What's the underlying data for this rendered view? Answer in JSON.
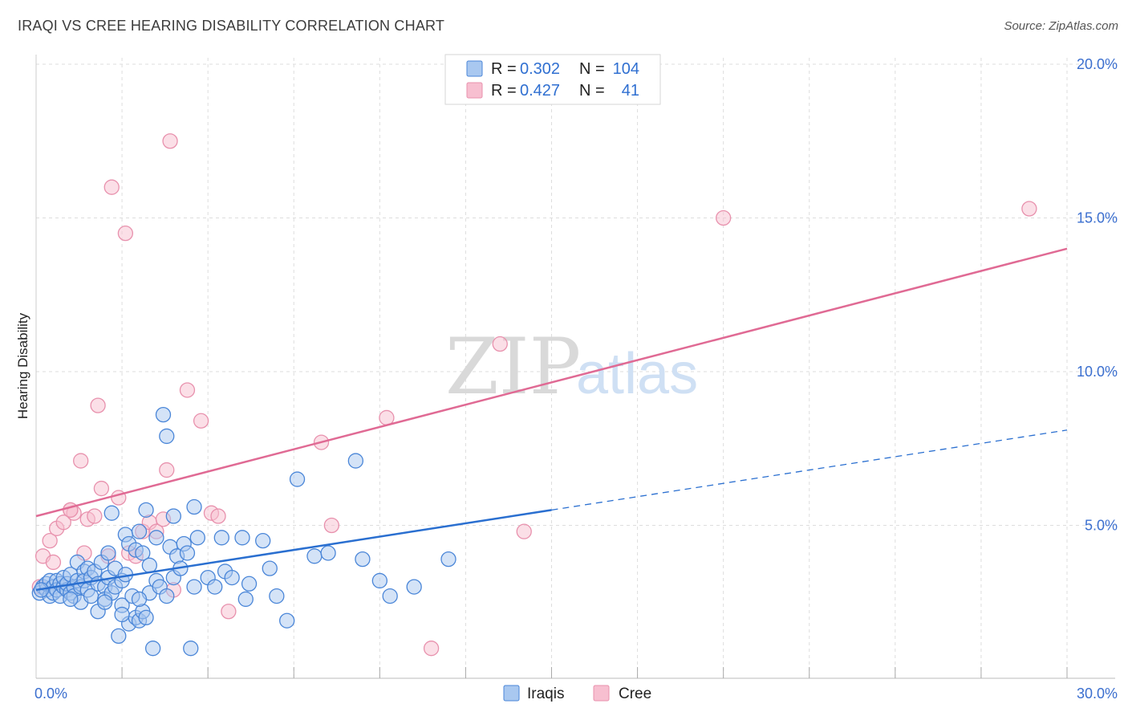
{
  "title": "IRAQI VS CREE HEARING DISABILITY CORRELATION CHART",
  "source": "Source: ZipAtlas.com",
  "watermark": {
    "zip": "ZIP",
    "atlas": "atlas"
  },
  "colors": {
    "iraqis_fill": "#a9c8f0",
    "iraqis_stroke": "#4a86d8",
    "iraqis_line": "#2a6fd0",
    "cree_fill": "#f7bfd0",
    "cree_stroke": "#e891ad",
    "cree_line": "#e06a94",
    "grid": "#dddddd",
    "tick": "#3b6fcf"
  },
  "legend": {
    "rows": [
      {
        "r_label": "R =",
        "r_value": "0.302",
        "n_label": "N =",
        "n_value": "104",
        "series": "Iraqis"
      },
      {
        "r_label": "R =",
        "r_value": "0.427",
        "n_label": "N =",
        "n_value": "41",
        "series": "Cree"
      }
    ]
  },
  "bottom_legend": [
    "Iraqis",
    "Cree"
  ],
  "chart_data": {
    "type": "scatter",
    "title": "IRAQI VS CREE HEARING DISABILITY CORRELATION CHART",
    "xlabel": "",
    "ylabel": "Hearing Disability",
    "xlim": [
      0,
      30
    ],
    "ylim": [
      0,
      20
    ],
    "x_tick_labels": [
      {
        "value": 0,
        "label": "0.0%"
      },
      {
        "value": 30,
        "label": "30.0%"
      }
    ],
    "y_tick_labels": [
      {
        "value": 5,
        "label": "5.0%"
      },
      {
        "value": 10,
        "label": "10.0%"
      },
      {
        "value": 15,
        "label": "15.0%"
      },
      {
        "value": 20,
        "label": "20.0%"
      }
    ],
    "grid": true,
    "legend_position": "top-center",
    "series": [
      {
        "name": "Iraqis",
        "R": 0.302,
        "N": 104,
        "trend": {
          "x0": 0,
          "y0": 2.9,
          "x1": 15,
          "y1": 5.5,
          "dashed_to_x": 30,
          "dashed_to_y": 8.1
        },
        "points": [
          [
            0.1,
            2.8
          ],
          [
            0.2,
            3.0
          ],
          [
            0.3,
            2.9
          ],
          [
            0.3,
            3.1
          ],
          [
            0.4,
            2.7
          ],
          [
            0.4,
            3.2
          ],
          [
            0.5,
            3.0
          ],
          [
            0.5,
            2.8
          ],
          [
            0.6,
            3.2
          ],
          [
            0.6,
            2.9
          ],
          [
            0.7,
            3.1
          ],
          [
            0.7,
            2.7
          ],
          [
            0.8,
            3.0
          ],
          [
            0.8,
            3.3
          ],
          [
            0.9,
            2.9
          ],
          [
            0.9,
            3.1
          ],
          [
            1.0,
            2.8
          ],
          [
            1.0,
            3.4
          ],
          [
            1.1,
            3.0
          ],
          [
            1.1,
            2.7
          ],
          [
            1.2,
            3.2
          ],
          [
            1.2,
            3.8
          ],
          [
            1.3,
            2.5
          ],
          [
            1.3,
            3.0
          ],
          [
            1.4,
            3.5
          ],
          [
            1.4,
            3.2
          ],
          [
            1.5,
            3.6
          ],
          [
            1.5,
            2.9
          ],
          [
            1.6,
            3.3
          ],
          [
            1.6,
            2.7
          ],
          [
            1.7,
            3.5
          ],
          [
            1.8,
            3.1
          ],
          [
            1.8,
            2.2
          ],
          [
            1.9,
            3.8
          ],
          [
            2.0,
            3.0
          ],
          [
            2.0,
            2.6
          ],
          [
            2.1,
            3.3
          ],
          [
            2.1,
            4.1
          ],
          [
            2.2,
            2.8
          ],
          [
            2.2,
            5.4
          ],
          [
            2.3,
            3.6
          ],
          [
            2.3,
            3.0
          ],
          [
            2.4,
            1.4
          ],
          [
            2.5,
            3.2
          ],
          [
            2.5,
            2.4
          ],
          [
            2.6,
            4.7
          ],
          [
            2.6,
            3.4
          ],
          [
            2.7,
            1.8
          ],
          [
            2.7,
            4.4
          ],
          [
            2.8,
            2.7
          ],
          [
            2.9,
            4.2
          ],
          [
            2.9,
            2.0
          ],
          [
            3.0,
            4.8
          ],
          [
            3.0,
            1.9
          ],
          [
            3.1,
            2.2
          ],
          [
            3.1,
            4.1
          ],
          [
            3.2,
            5.5
          ],
          [
            3.2,
            2.0
          ],
          [
            3.3,
            3.7
          ],
          [
            3.3,
            2.8
          ],
          [
            3.4,
            1.0
          ],
          [
            3.5,
            4.6
          ],
          [
            3.5,
            3.2
          ],
          [
            3.6,
            3.0
          ],
          [
            3.7,
            8.6
          ],
          [
            3.8,
            2.7
          ],
          [
            3.9,
            4.3
          ],
          [
            4.0,
            5.3
          ],
          [
            4.0,
            3.3
          ],
          [
            4.1,
            4.0
          ],
          [
            4.2,
            3.6
          ],
          [
            4.3,
            4.4
          ],
          [
            4.4,
            4.1
          ],
          [
            4.5,
            1.0
          ],
          [
            4.6,
            5.6
          ],
          [
            4.6,
            3.0
          ],
          [
            4.7,
            4.6
          ],
          [
            5.0,
            3.3
          ],
          [
            5.2,
            3.0
          ],
          [
            5.4,
            4.6
          ],
          [
            5.5,
            3.5
          ],
          [
            5.7,
            3.3
          ],
          [
            6.0,
            4.6
          ],
          [
            6.1,
            2.6
          ],
          [
            6.2,
            3.1
          ],
          [
            6.6,
            4.5
          ],
          [
            6.8,
            3.6
          ],
          [
            7.0,
            2.7
          ],
          [
            7.3,
            1.9
          ],
          [
            7.6,
            6.5
          ],
          [
            8.1,
            4.0
          ],
          [
            8.5,
            4.1
          ],
          [
            9.3,
            7.1
          ],
          [
            9.5,
            3.9
          ],
          [
            10.0,
            3.2
          ],
          [
            10.3,
            2.7
          ],
          [
            11.0,
            3.0
          ],
          [
            12.0,
            3.9
          ],
          [
            2.0,
            2.5
          ],
          [
            1.0,
            2.6
          ],
          [
            3.8,
            7.9
          ],
          [
            3.0,
            2.6
          ],
          [
            2.5,
            2.1
          ],
          [
            0.15,
            2.9
          ]
        ]
      },
      {
        "name": "Cree",
        "R": 0.427,
        "N": 41,
        "trend": {
          "x0": 0,
          "y0": 5.3,
          "x1": 30,
          "y1": 14.0
        },
        "points": [
          [
            0.2,
            4.0
          ],
          [
            0.4,
            4.5
          ],
          [
            0.5,
            3.8
          ],
          [
            0.6,
            4.9
          ],
          [
            0.8,
            5.1
          ],
          [
            1.0,
            5.5
          ],
          [
            1.1,
            5.4
          ],
          [
            1.3,
            7.1
          ],
          [
            1.4,
            4.1
          ],
          [
            1.5,
            5.2
          ],
          [
            1.7,
            5.3
          ],
          [
            1.8,
            8.9
          ],
          [
            1.9,
            6.2
          ],
          [
            2.1,
            4.0
          ],
          [
            2.2,
            16.0
          ],
          [
            2.4,
            5.9
          ],
          [
            2.6,
            14.5
          ],
          [
            2.7,
            4.1
          ],
          [
            2.9,
            4.0
          ],
          [
            3.1,
            4.8
          ],
          [
            3.3,
            5.1
          ],
          [
            3.5,
            4.8
          ],
          [
            3.7,
            5.2
          ],
          [
            3.8,
            6.8
          ],
          [
            3.9,
            17.5
          ],
          [
            4.0,
            2.9
          ],
          [
            4.4,
            9.4
          ],
          [
            4.8,
            8.4
          ],
          [
            5.1,
            5.4
          ],
          [
            5.3,
            5.3
          ],
          [
            5.6,
            2.2
          ],
          [
            8.3,
            7.7
          ],
          [
            8.6,
            5.0
          ],
          [
            10.2,
            8.5
          ],
          [
            11.5,
            1.0
          ],
          [
            13.5,
            10.9
          ],
          [
            14.2,
            4.8
          ],
          [
            20.0,
            15.0
          ],
          [
            28.9,
            15.3
          ],
          [
            0.1,
            3.0
          ],
          [
            1.0,
            5.5
          ]
        ]
      }
    ]
  }
}
